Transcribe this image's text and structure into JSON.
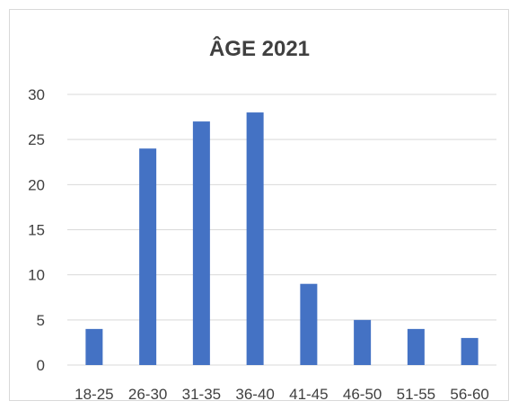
{
  "chart_data": {
    "type": "bar",
    "title": "ÂGE 2021",
    "categories": [
      "18-25",
      "26-30",
      "31-35",
      "36-40",
      "41-45",
      "46-50",
      "51-55",
      "56-60"
    ],
    "values": [
      4,
      24,
      27,
      28,
      9,
      5,
      4,
      3
    ],
    "xlabel": "",
    "ylabel": "",
    "ylim": [
      0,
      30
    ],
    "yticks": [
      0,
      5,
      10,
      15,
      20,
      25,
      30
    ],
    "grid": true,
    "bar_color": "#4472c4",
    "grid_color": "#d9d9d9"
  }
}
